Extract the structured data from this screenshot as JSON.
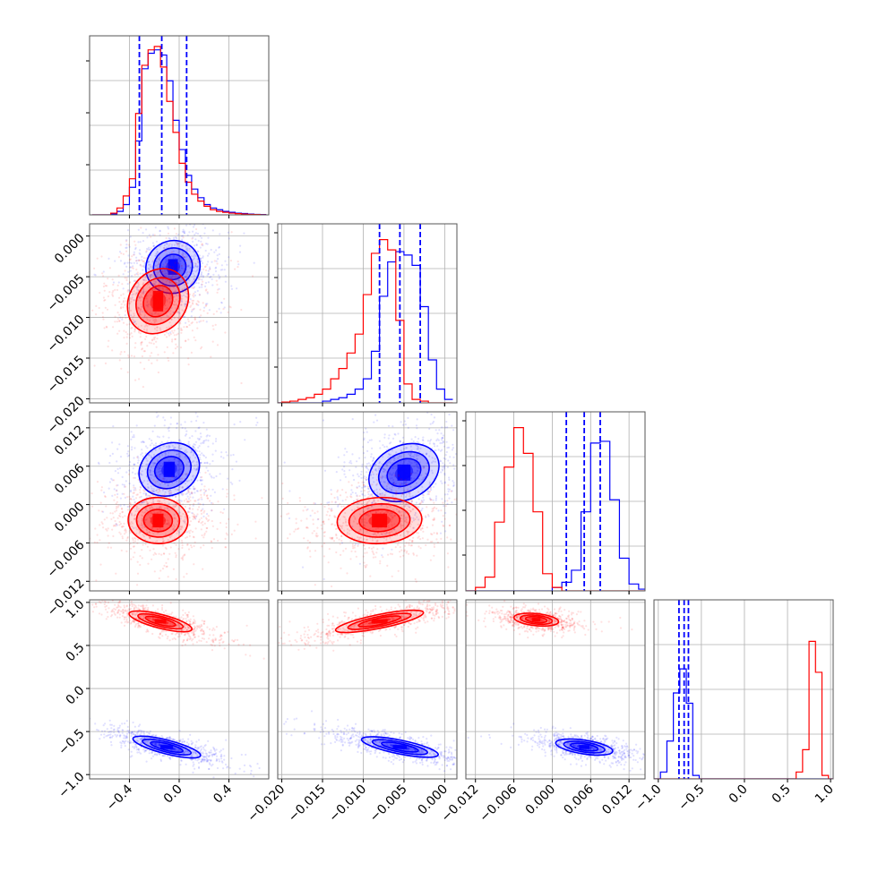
{
  "chart_data": {
    "type": "corner",
    "grid": true,
    "colors": {
      "blue": "#0000ff",
      "red": "#ff0000"
    },
    "series": [
      {
        "color": "blue",
        "x": {
          "median": -0.14,
          "lo": -0.32,
          "hi": 0.06
        },
        "y": {
          "median": -0.0055,
          "lo": -0.008,
          "hi": -0.003
        },
        "z": {
          "median": 0.005,
          "lo": 0.0022,
          "hi": 0.0075
        },
        "w": {
          "median": -0.7,
          "lo": -0.76,
          "hi": -0.65
        }
      },
      {
        "color": "red",
        "x": {
          "median": -0.2
        },
        "y": {
          "median": -0.0075
        },
        "z": {
          "median": -0.0025
        },
        "w": {
          "median": 0.82
        }
      }
    ],
    "histograms": {
      "x": {
        "edges": [
          -0.7,
          -0.65,
          -0.6,
          -0.55,
          -0.5,
          -0.45,
          -0.4,
          -0.35,
          -0.3,
          -0.25,
          -0.2,
          -0.15,
          -0.1,
          -0.05,
          0.0,
          0.05,
          0.1,
          0.15,
          0.2,
          0.25,
          0.3,
          0.35,
          0.4,
          0.45,
          0.5,
          0.55,
          0.6,
          0.65,
          0.7
        ],
        "blue": [
          0,
          0,
          0,
          0.005,
          0.02,
          0.06,
          0.16,
          0.43,
          0.85,
          0.94,
          0.96,
          0.93,
          0.78,
          0.55,
          0.38,
          0.23,
          0.15,
          0.1,
          0.06,
          0.04,
          0.03,
          0.02,
          0.015,
          0.01,
          0.008,
          0.005,
          0.003,
          0.002
        ],
        "red": [
          0,
          0,
          0,
          0.01,
          0.04,
          0.11,
          0.21,
          0.59,
          0.87,
          0.96,
          0.98,
          0.86,
          0.66,
          0.48,
          0.3,
          0.19,
          0.12,
          0.08,
          0.05,
          0.03,
          0.02,
          0.015,
          0.01,
          0.007,
          0.005,
          0.003,
          0.002,
          0.001
        ]
      },
      "y": {
        "edges": [
          -0.021,
          -0.02,
          -0.019,
          -0.018,
          -0.017,
          -0.016,
          -0.015,
          -0.014,
          -0.013,
          -0.012,
          -0.011,
          -0.01,
          -0.009,
          -0.008,
          -0.007,
          -0.006,
          -0.005,
          -0.004,
          -0.003,
          -0.002,
          -0.001,
          0.0,
          0.001
        ],
        "blue": [
          0,
          0,
          0,
          0,
          0,
          0,
          0.01,
          0.02,
          0.03,
          0.05,
          0.08,
          0.14,
          0.3,
          0.62,
          0.82,
          0.88,
          0.86,
          0.8,
          0.56,
          0.25,
          0.08,
          0.02
        ],
        "red": [
          0,
          0.005,
          0.01,
          0.02,
          0.03,
          0.05,
          0.08,
          0.14,
          0.2,
          0.29,
          0.4,
          0.63,
          0.87,
          0.95,
          0.89,
          0.48,
          0.11,
          0.02,
          0.01,
          0,
          0,
          0
        ]
      },
      "z": {
        "edges": [
          -0.0135,
          -0.012,
          -0.0105,
          -0.009,
          -0.0075,
          -0.006,
          -0.0045,
          -0.003,
          -0.0015,
          0.0,
          0.0015,
          0.003,
          0.0045,
          0.006,
          0.0075,
          0.009,
          0.0105,
          0.012,
          0.0135,
          0.015
        ],
        "blue": [
          0,
          0,
          0,
          0,
          0,
          0,
          0,
          0,
          0,
          0.02,
          0.05,
          0.12,
          0.46,
          0.86,
          0.87,
          0.53,
          0.19,
          0.04,
          0.01
        ],
        "red": [
          0,
          0.02,
          0.08,
          0.4,
          0.72,
          0.95,
          0.8,
          0.46,
          0.1,
          0.02,
          0,
          0,
          0,
          0,
          0,
          0,
          0,
          0,
          0
        ]
      },
      "w": {
        "edges": [
          -1.05,
          -0.975,
          -0.9,
          -0.825,
          -0.75,
          -0.675,
          -0.6,
          -0.525,
          -0.45,
          -0.375,
          -0.3,
          -0.225,
          -0.15,
          -0.075,
          0.0,
          0.075,
          0.15,
          0.225,
          0.3,
          0.375,
          0.45,
          0.525,
          0.6,
          0.675,
          0.75,
          0.825,
          0.9,
          0.975,
          1.05
        ],
        "blue": [
          0,
          0.04,
          0.22,
          0.5,
          0.64,
          0.44,
          0.02,
          0,
          0,
          0,
          0,
          0,
          0,
          0,
          0,
          0,
          0,
          0,
          0,
          0,
          0,
          0,
          0,
          0,
          0,
          0,
          0,
          0
        ],
        "red": [
          0,
          0,
          0,
          0,
          0,
          0,
          0,
          0,
          0,
          0,
          0,
          0,
          0,
          0,
          0,
          0,
          0,
          0,
          0,
          0,
          0,
          0,
          0.04,
          0.17,
          0.8,
          0.62,
          0.02,
          0
        ]
      }
    },
    "axes": {
      "x": {
        "range": [
          -0.72,
          0.72
        ],
        "ticks": [
          -0.4,
          0.0,
          0.4
        ],
        "tick_labels": [
          "−0.4",
          "0.0",
          "0.4"
        ]
      },
      "y": {
        "range": [
          -0.0205,
          0.0015
        ],
        "ticks": [
          -0.02,
          -0.015,
          -0.01,
          -0.005,
          0.0
        ],
        "tick_labels": [
          "−0.020",
          "−0.015",
          "−0.010",
          "−0.005",
          "0.000"
        ]
      },
      "z": {
        "range": [
          -0.0135,
          0.0145
        ],
        "ticks": [
          -0.012,
          -0.006,
          0.0,
          0.006,
          0.012
        ],
        "tick_labels": [
          "−0.012",
          "−0.006",
          "0.000",
          "0.006",
          "0.012"
        ]
      },
      "w": {
        "range": [
          -1.05,
          1.03
        ],
        "ticks": [
          -1.0,
          -0.5,
          0.0,
          0.5,
          1.0
        ],
        "tick_labels": [
          "−1.0",
          "−0.5",
          "0.0",
          "0.5",
          "1.0"
        ]
      }
    },
    "clusters": {
      "blue": [
        {
          "pair": "x-y",
          "cx": -0.05,
          "cy": -0.0038,
          "rx": 0.22,
          "ry": 0.0032,
          "angle": 0.55
        },
        {
          "pair": "x-z",
          "cx": -0.08,
          "cy": 0.0055,
          "rx": 0.25,
          "ry": 0.004,
          "angle": 0.45
        },
        {
          "pair": "y-z",
          "cx": -0.005,
          "cy": 0.005,
          "rx": 0.0045,
          "ry": 0.0042,
          "angle": 0.45
        },
        {
          "pair": "x-w",
          "cx": -0.1,
          "cy": -0.68,
          "rx": 0.28,
          "ry": 0.08,
          "angle": -0.25
        },
        {
          "pair": "y-w",
          "cx": -0.0055,
          "cy": -0.68,
          "rx": 0.0048,
          "ry": 0.08,
          "angle": -0.2
        },
        {
          "pair": "z-w",
          "cx": 0.005,
          "cy": -0.68,
          "rx": 0.0045,
          "ry": 0.08,
          "angle": -0.15
        }
      ],
      "red": [
        {
          "pair": "x-y",
          "cx": -0.17,
          "cy": -0.008,
          "rx": 0.23,
          "ry": 0.0042,
          "angle": -0.6
        },
        {
          "pair": "x-z",
          "cx": -0.17,
          "cy": -0.0025,
          "rx": 0.24,
          "ry": 0.0036,
          "angle": -0.05
        },
        {
          "pair": "y-z",
          "cx": -0.008,
          "cy": -0.0025,
          "rx": 0.0052,
          "ry": 0.0036,
          "angle": 0.05
        },
        {
          "pair": "x-w",
          "cx": -0.15,
          "cy": 0.78,
          "rx": 0.26,
          "ry": 0.08,
          "angle": -0.25
        },
        {
          "pair": "y-w",
          "cx": -0.008,
          "cy": 0.78,
          "rx": 0.0055,
          "ry": 0.08,
          "angle": 0.2
        },
        {
          "pair": "z-w",
          "cx": -0.0025,
          "cy": 0.8,
          "rx": 0.0035,
          "ry": 0.07,
          "angle": -0.1
        }
      ]
    }
  }
}
